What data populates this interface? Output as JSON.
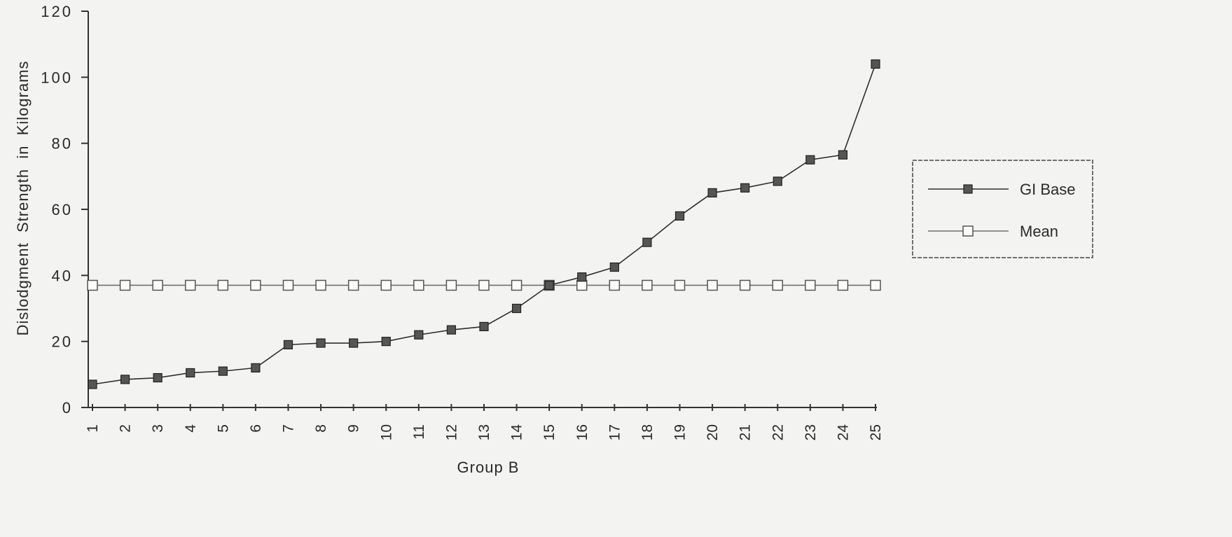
{
  "chart_data": {
    "type": "line",
    "title": "",
    "xlabel": "Group B",
    "ylabel": "Dislodgment  Strength  in  Kilograms",
    "x": [
      1,
      2,
      3,
      4,
      5,
      6,
      7,
      8,
      9,
      10,
      11,
      12,
      13,
      14,
      15,
      16,
      17,
      18,
      19,
      20,
      21,
      22,
      23,
      24,
      25
    ],
    "ylim": [
      0,
      120
    ],
    "yticks": [
      0,
      20,
      40,
      60,
      80,
      100,
      120
    ],
    "grid": false,
    "legend_position": "right",
    "series": [
      {
        "name": "GI Base",
        "marker": "filled-square",
        "color": "#555555",
        "values": [
          7,
          8.5,
          9,
          10.5,
          11,
          12,
          19,
          19.5,
          19.5,
          20,
          22,
          23.5,
          24.5,
          30,
          37,
          39.5,
          42.5,
          50,
          58,
          65,
          66.5,
          68.5,
          75,
          76.5,
          104
        ]
      },
      {
        "name": "Mean",
        "marker": "open-square",
        "color": "#6f6f6f",
        "values": [
          37,
          37,
          37,
          37,
          37,
          37,
          37,
          37,
          37,
          37,
          37,
          37,
          37,
          37,
          37,
          37,
          37,
          37,
          37,
          37,
          37,
          37,
          37,
          37,
          37
        ]
      }
    ]
  }
}
